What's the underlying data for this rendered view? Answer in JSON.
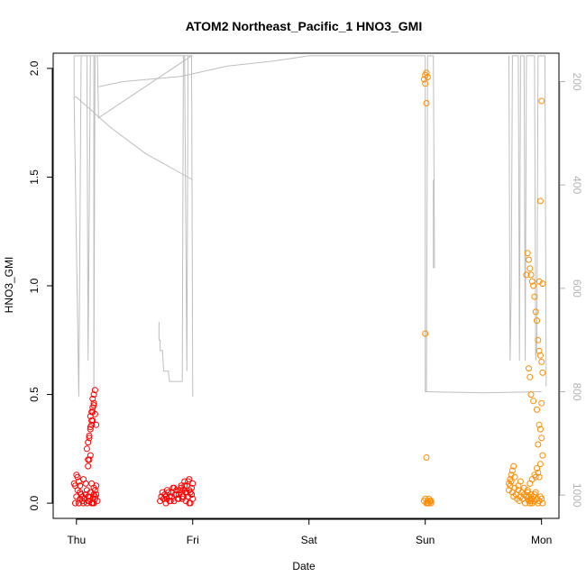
{
  "chart_data": {
    "type": "scatter",
    "title": "ATOM2 Northeast_Pacific_1 HNO3_GMI",
    "xlabel": "Date",
    "ylabel": "HNO3_GMI",
    "xlim": [
      -0.2,
      4.15
    ],
    "ylim": [
      -0.07,
      2.07
    ],
    "x_ticks": [
      {
        "value": 0,
        "label": "Thu"
      },
      {
        "value": 1,
        "label": "Fri"
      },
      {
        "value": 2,
        "label": "Sat"
      },
      {
        "value": 3,
        "label": "Sun"
      },
      {
        "value": 4,
        "label": "Mon"
      }
    ],
    "y_ticks": [
      {
        "value": 0,
        "label": "0.0"
      },
      {
        "value": 0.5,
        "label": "0.5"
      },
      {
        "value": 1,
        "label": "1.0"
      },
      {
        "value": 1.5,
        "label": "1.5"
      },
      {
        "value": 2,
        "label": "2.0"
      }
    ],
    "y2_ticks": [
      {
        "value": 200,
        "label": "200"
      },
      {
        "value": 400,
        "label": "400"
      },
      {
        "value": 600,
        "label": "600"
      },
      {
        "value": 800,
        "label": "800"
      },
      {
        "value": 1000,
        "label": "1000"
      }
    ],
    "y2lim": [
      1045,
      145
    ],
    "grid": false,
    "colors": {
      "series_red": "#ff0000",
      "series_orange": "#ff8c00",
      "pressure_line": "#bebebe"
    },
    "series": [
      {
        "color": "#ff0000",
        "marker": "open-circle",
        "x": [
          -0.02,
          -0.01,
          0.0,
          0.01,
          0.02,
          0.03,
          0.0,
          0.02,
          0.03,
          0.04,
          0.05,
          -0.01,
          0.01,
          0.03,
          0.05,
          0.06,
          0.07,
          0.08,
          0.06,
          0.08,
          0.09,
          0.1,
          0.11,
          0.1,
          0.11,
          0.12,
          0.09,
          0.1,
          0.11,
          0.12,
          0.13,
          0.14,
          0.12,
          0.13,
          0.14,
          0.15,
          0.14,
          0.15,
          0.16,
          0.15,
          0.14,
          0.13,
          0.12,
          0.11,
          0.1,
          0.09,
          0.1,
          0.11,
          0.12,
          0.13,
          0.14,
          0.15,
          0.16,
          0.17,
          0.16,
          0.17,
          0.16,
          0.15,
          0.16,
          0.17,
          0.18,
          0.13,
          0.14,
          0.15
        ],
        "y": [
          0.09,
          0.08,
          0.13,
          0.12,
          0.1,
          0.05,
          0.03,
          0.0,
          0.02,
          0.04,
          0.01,
          0.0,
          0.06,
          0.08,
          0.03,
          0.0,
          0.02,
          0.04,
          0.11,
          0.09,
          0.06,
          0.03,
          0.01,
          0.17,
          0.2,
          0.22,
          0.25,
          0.28,
          0.31,
          0.34,
          0.36,
          0.38,
          0.4,
          0.42,
          0.44,
          0.46,
          0.48,
          0.5,
          0.52,
          0.45,
          0.42,
          0.38,
          0.35,
          0.3,
          0.2,
          0.0,
          0.01,
          0.03,
          0.05,
          0.0,
          0.02,
          0.04,
          0.06,
          0.08,
          0.41,
          0.36,
          0.03,
          0.0,
          0.02,
          0.04,
          0.01,
          0.09,
          0.0,
          0.07
        ]
      },
      {
        "color": "#ff0000",
        "marker": "open-circle",
        "x": [
          0.72,
          0.73,
          0.74,
          0.75,
          0.76,
          0.77,
          0.78,
          0.8,
          0.82,
          0.84,
          0.86,
          0.88,
          0.9,
          0.91,
          0.92,
          0.93,
          0.94,
          0.95,
          0.96,
          0.97,
          0.98,
          0.99,
          1.0,
          1.0,
          0.99,
          0.97,
          0.95,
          0.93,
          0.91,
          0.89,
          0.87,
          0.85,
          0.83,
          0.81,
          0.79,
          0.77,
          0.75,
          0.94,
          0.96,
          0.98,
          0.92,
          0.9,
          0.88,
          0.86,
          0.84,
          0.82,
          0.8,
          0.78,
          0.96,
          0.97,
          0.99
        ],
        "y": [
          0.01,
          0.03,
          0.05,
          0.02,
          0.04,
          0.0,
          0.02,
          0.03,
          0.05,
          0.01,
          0.06,
          0.04,
          0.07,
          0.02,
          0.03,
          0.1,
          0.05,
          0.08,
          0.03,
          0.06,
          0.0,
          0.04,
          0.09,
          0.02,
          0.07,
          0.11,
          0.05,
          0.08,
          0.03,
          0.06,
          0.02,
          0.04,
          0.07,
          0.01,
          0.05,
          0.03,
          0.02,
          0.01,
          0.03,
          0.05,
          0.06,
          0.08,
          0.02,
          0.04,
          0.07,
          0.03,
          0.01,
          0.06,
          0.1,
          0.0,
          0.04
        ]
      },
      {
        "color": "#ff8c00",
        "marker": "open-circle",
        "x": [
          2.99,
          3.0,
          3.01,
          3.02,
          3.0,
          3.01,
          3.0,
          3.01,
          3.0,
          2.99,
          3.01,
          3.02,
          3.03,
          3.04,
          3.05,
          3.03,
          3.04,
          3.02,
          3.05
        ],
        "y": [
          1.95,
          1.97,
          1.98,
          1.96,
          1.93,
          1.84,
          0.78,
          0.21,
          0.02,
          0.01,
          0.0,
          0.01,
          0.0,
          0.01,
          0.0,
          0.02,
          0.01,
          0.0,
          0.01
        ]
      },
      {
        "color": "#ff8c00",
        "marker": "open-circle",
        "x": [
          3.72,
          3.73,
          3.74,
          3.75,
          3.76,
          3.77,
          3.78,
          3.79,
          3.8,
          3.81,
          3.82,
          3.83,
          3.84,
          3.85,
          3.86,
          3.87,
          3.88,
          3.89,
          3.9,
          3.91,
          3.92,
          3.93,
          3.94,
          3.95,
          3.96,
          3.97,
          3.98,
          3.99,
          4.0,
          4.01,
          3.74,
          3.75,
          3.76,
          3.77,
          3.73,
          3.72,
          3.8,
          3.82,
          3.85,
          3.88,
          3.9,
          3.92,
          3.94,
          3.96,
          3.98,
          3.97,
          3.99,
          4.0,
          4.01,
          4.0,
          3.99,
          3.98,
          3.97,
          3.96,
          3.95,
          3.94,
          3.93,
          3.92,
          3.91,
          3.9,
          3.89,
          3.88,
          3.87,
          3.89,
          3.9,
          3.91,
          3.93,
          3.96,
          3.98,
          4.0,
          4.01,
          3.99,
          3.97,
          3.95,
          3.94,
          3.92,
          3.91,
          3.9,
          3.89
        ],
        "y": [
          0.06,
          0.08,
          0.1,
          0.05,
          0.03,
          0.07,
          0.04,
          0.02,
          0.06,
          0.01,
          0.03,
          0.05,
          0.02,
          0.04,
          0.0,
          0.03,
          0.05,
          0.01,
          0.02,
          0.04,
          0.0,
          0.03,
          0.01,
          0.05,
          0.02,
          0.0,
          0.01,
          0.03,
          0.02,
          0.0,
          0.13,
          0.15,
          0.17,
          0.12,
          0.11,
          0.09,
          0.08,
          0.1,
          0.07,
          0.06,
          0.09,
          0.11,
          0.13,
          0.16,
          0.12,
          0.27,
          0.34,
          0.46,
          0.6,
          0.65,
          0.68,
          0.7,
          0.75,
          0.84,
          0.88,
          0.95,
          1.0,
          1.02,
          1.05,
          1.08,
          1.12,
          1.15,
          1.05,
          0.62,
          0.58,
          0.5,
          0.47,
          0.43,
          0.36,
          0.3,
          0.22,
          0.18,
          0.14,
          0.12,
          0.04,
          0.02,
          0.01,
          0.0,
          0.03
        ]
      },
      {
        "color": "#ff8c00",
        "marker": "open-circle",
        "x": [
          4.0,
          3.99,
          3.98,
          4.01
        ],
        "y": [
          1.85,
          1.39,
          1.02,
          1.01
        ]
      }
    ],
    "pressure_line": {
      "color": "#bebebe",
      "axis": "right",
      "segments": [
        {
          "x": [
            -0.02,
            -0.02,
            0.02,
            0.04,
            0.04,
            0.06,
            0.07,
            0.08,
            0.09,
            0.1,
            0.12,
            0.14,
            0.14,
            0.15,
            0.15,
            0.16,
            0.16,
            0.17,
            0.18,
            0.19,
            0.99,
            1.0,
            1.0,
            0.95,
            0.9,
            0.85,
            0.77,
            0.7,
            0.66,
            0.62,
            0.53,
            0.3,
            0.06,
            -0.02
          ],
          "y": [
            150,
            230,
            810,
            150,
            150,
            150,
            150,
            150,
            150,
            740,
            150,
            150,
            150,
            150,
            800,
            150,
            150,
            150,
            150,
            270,
            150,
            150,
            150,
            150,
            150,
            150,
            150,
            150,
            150,
            150,
            150,
            150,
            150,
            150
          ]
        },
        {
          "x": [
            -0.02,
            0.0,
            0.3,
            0.6,
            1.0
          ],
          "y": [
            230,
            230,
            290,
            340,
            390
          ]
        },
        {
          "x": [
            0.19,
            0.4,
            0.9,
            1.3,
            1.7,
            2.0,
            2.5,
            3.0
          ],
          "y": [
            210,
            200,
            190,
            170,
            160,
            150,
            150,
            150
          ]
        },
        {
          "x": [
            0.71,
            0.71,
            0.72,
            0.72,
            0.73,
            0.74,
            0.75,
            0.76,
            0.77,
            0.79,
            0.8,
            0.86,
            0.91,
            0.92,
            0.93,
            0.95,
            0.96,
            0.97,
            0.98,
            0.99,
            1.0
          ],
          "y": [
            665,
            700,
            700,
            720,
            720,
            720,
            760,
            760,
            760,
            760,
            780,
            780,
            780,
            150,
            150,
            760,
            150,
            150,
            150,
            150,
            810
          ]
        },
        {
          "x": [
            3.0,
            3.0,
            3.01,
            3.02,
            3.03,
            3.04,
            3.05,
            3.06,
            3.07,
            3.08
          ],
          "y": [
            150,
            800,
            800,
            150,
            150,
            150,
            150,
            150,
            150,
            560
          ]
        },
        {
          "x": [
            3.07,
            3.07,
            3.08
          ],
          "y": [
            390,
            560,
            560
          ]
        },
        {
          "x": [
            3.0,
            3.5,
            4.0
          ],
          "y": [
            800,
            802,
            800
          ]
        },
        {
          "x": [
            3.72,
            3.73,
            3.74,
            3.75,
            3.76,
            3.77,
            3.78,
            3.79,
            3.8,
            3.81,
            3.82,
            3.83,
            3.84,
            3.85,
            3.86,
            3.87,
            3.88,
            3.89,
            3.9,
            3.91,
            3.92,
            3.93,
            3.94,
            3.95,
            3.96,
            3.97,
            3.98,
            3.99,
            4.0,
            4.01,
            4.02,
            4.03,
            4.04
          ],
          "y": [
            150,
            740,
            600,
            150,
            150,
            150,
            150,
            150,
            150,
            740,
            150,
            150,
            150,
            150,
            740,
            150,
            150,
            150,
            150,
            150,
            150,
            150,
            150,
            740,
            700,
            150,
            150,
            150,
            150,
            150,
            150,
            150,
            790
          ]
        }
      ]
    }
  }
}
